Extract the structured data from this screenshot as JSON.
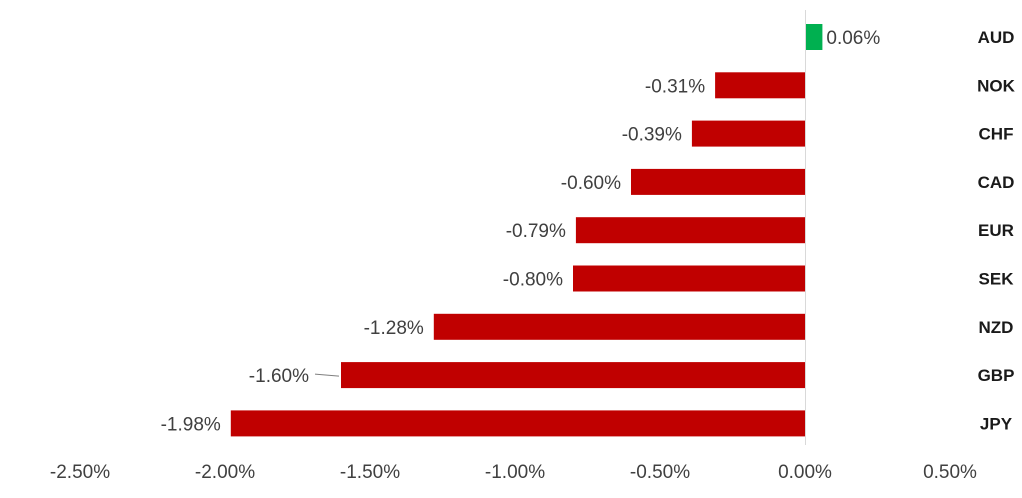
{
  "chart_data": {
    "type": "bar",
    "orientation": "horizontal",
    "categories": [
      "AUD",
      "NOK",
      "CHF",
      "CAD",
      "EUR",
      "SEK",
      "NZD",
      "GBP",
      "JPY"
    ],
    "values": [
      0.06,
      -0.31,
      -0.39,
      -0.6,
      -0.79,
      -0.8,
      -1.28,
      -1.6,
      -1.98
    ],
    "data_labels": [
      "0.06%",
      "-0.31%",
      "-0.39%",
      "-0.60%",
      "-0.79%",
      "-0.80%",
      "-1.28%",
      "-1.60%",
      "-1.98%"
    ],
    "x_ticks": [
      -2.5,
      -2.0,
      -1.5,
      -1.0,
      -0.5,
      0.0,
      0.5
    ],
    "x_tick_labels": [
      "-2.50%",
      "-2.00%",
      "-1.50%",
      "-1.00%",
      "-0.50%",
      "0.00%",
      "0.50%"
    ],
    "xlim": [
      -2.5,
      0.5
    ],
    "grid": false,
    "legend": "none",
    "title": "",
    "xlabel": "",
    "ylabel": "",
    "colors": {
      "positive": "#00b050",
      "negative": "#c00000",
      "axis": "#d9d9d9",
      "text": "#404040"
    }
  }
}
